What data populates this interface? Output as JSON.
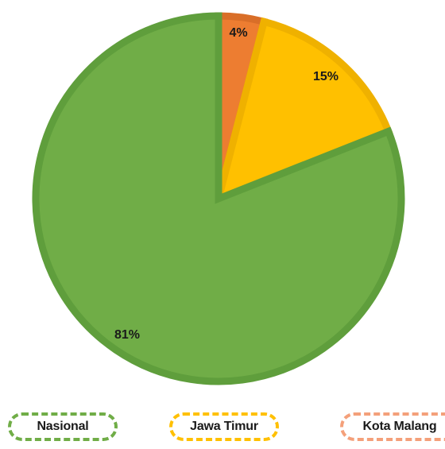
{
  "chart_data": {
    "type": "pie",
    "slices": [
      {
        "name": "Kota Malang",
        "value": 4,
        "label": "4%",
        "color": "#ED7D31",
        "edge": "#D96E28"
      },
      {
        "name": "Jawa Timur",
        "value": 15,
        "label": "15%",
        "color": "#FFC000",
        "edge": "#EFB100"
      },
      {
        "name": "Nasional",
        "value": 81,
        "label": "81%",
        "color": "#70AD47",
        "edge": "#5F9E3C"
      }
    ],
    "legend": {
      "placement": "bottom",
      "items": [
        {
          "name": "Nasional",
          "color": "#70AD47"
        },
        {
          "name": "Jawa Timur",
          "color": "#FFC000"
        },
        {
          "name": "Kota Malang",
          "color": "#F4A07A"
        }
      ]
    }
  }
}
